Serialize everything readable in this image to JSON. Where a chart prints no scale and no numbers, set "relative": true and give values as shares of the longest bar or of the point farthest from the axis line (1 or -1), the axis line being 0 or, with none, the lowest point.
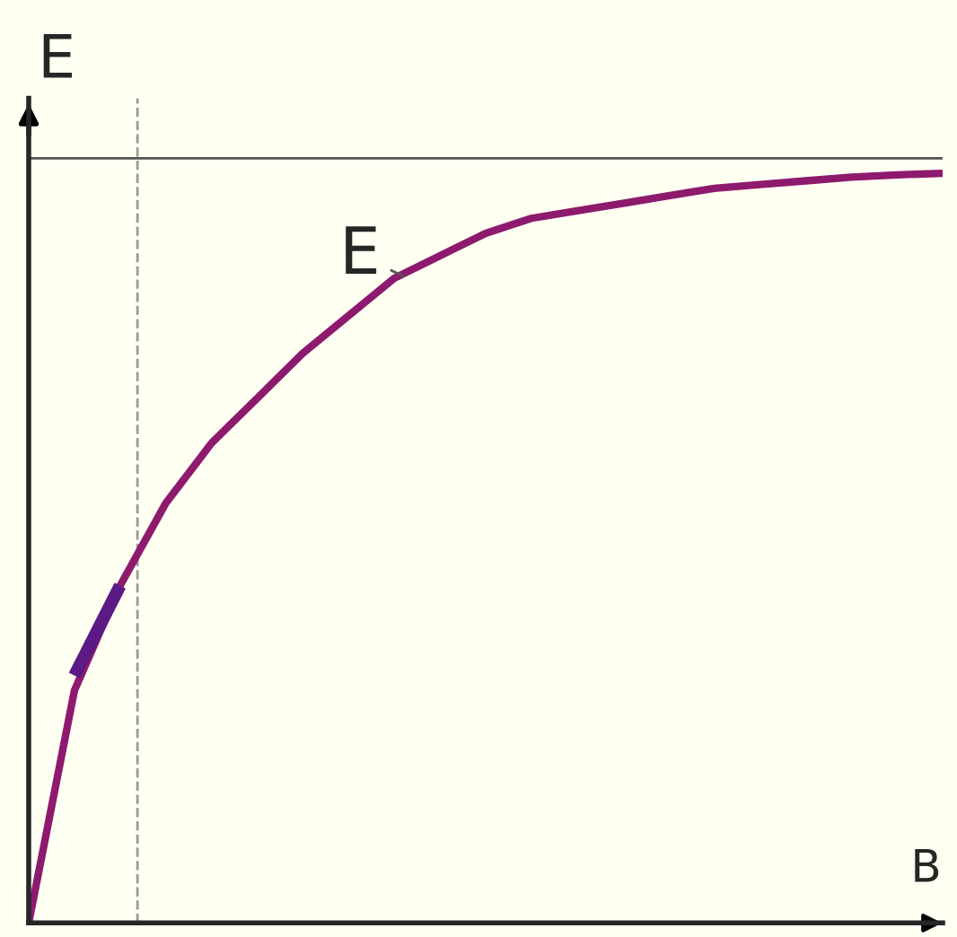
{
  "chart_data": {
    "type": "line",
    "relative": true,
    "xlabel": "B",
    "ylabel": "E",
    "annotations": [
      "E"
    ],
    "categories": [
      null,
      null,
      null,
      null,
      null,
      null,
      null,
      null,
      null,
      null,
      null,
      null,
      null,
      null,
      null,
      null,
      null,
      null,
      null,
      null,
      null
    ],
    "series": [
      {
        "color": "#8e1a6e",
        "values": [
          0,
          0.31,
          0.45,
          0.56,
          0.64,
          0.7,
          0.76,
          0.81,
          0.86,
          0.89,
          0.92,
          0.94,
          0.95,
          0.96,
          0.97,
          0.98,
          0.985,
          0.99,
          0.995,
          0.998,
          1.0
        ]
      },
      {
        "type": "line",
        "color": "#5b1a86",
        "values": [
          null,
          0.33,
          0.45,
          null,
          null,
          null,
          null,
          null,
          null,
          null,
          null,
          null,
          null,
          null,
          null,
          null,
          null,
          null,
          null,
          null,
          null
        ]
      }
    ],
    "ref_lines": [
      {
        "axis": "y",
        "value": 1.02,
        "color": "#555555",
        "line_style": "solid"
      }
    ],
    "legend": false,
    "marker": "none",
    "line_style": "solid"
  }
}
